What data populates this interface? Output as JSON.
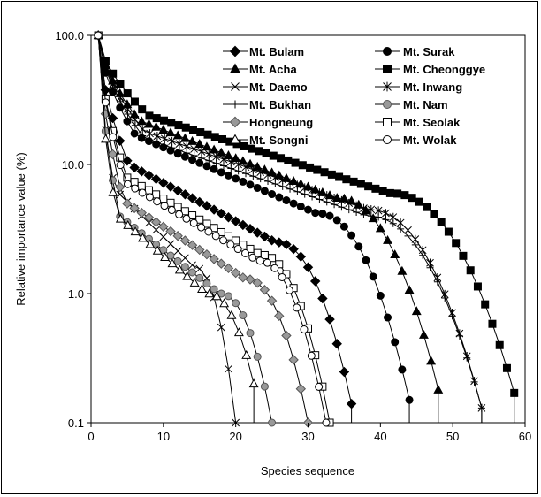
{
  "chart_data": {
    "type": "line",
    "title": "",
    "xlabel": "Species sequence",
    "ylabel": "Relative importance value (%)",
    "xlim": [
      0,
      60
    ],
    "ylim": [
      0.1,
      100
    ],
    "y_scale": "log",
    "grid": false,
    "legend_position": "top-right",
    "x_ticks": [
      0,
      10,
      20,
      30,
      40,
      50,
      60
    ],
    "x_tick_labels": [
      "0",
      "10",
      "20",
      "30",
      "40",
      "50",
      "60"
    ],
    "y_ticks": [
      0.1,
      1,
      10,
      100
    ],
    "y_tick_labels": [
      "0.1",
      "1.0",
      "10.0",
      "100.0"
    ],
    "series": [
      {
        "name": "Mt. Bulam",
        "marker": "diamond",
        "fill": "#000000",
        "n": 36,
        "end_x": 36,
        "start": 100,
        "mid": 2.5,
        "last": 0.14
      },
      {
        "name": "Mt. Surak",
        "marker": "circle",
        "fill": "#000000",
        "n": 44,
        "end_x": 44,
        "start": 100,
        "mid": 4.2,
        "last": 0.15
      },
      {
        "name": "Mt. Acha",
        "marker": "triangle",
        "fill": "#000000",
        "n": 48,
        "end_x": 48,
        "start": 100,
        "mid": 5.5,
        "last": 0.18
      },
      {
        "name": "Mt. Cheonggye",
        "marker": "square",
        "fill": "#000000",
        "n": 58,
        "end_x": 58.5,
        "start": 100,
        "mid": 6.0,
        "last": 0.17
      },
      {
        "name": "Mt. Daemo",
        "marker": "x",
        "fill": "#000000",
        "n": 20,
        "end_x": 20,
        "start": 100,
        "mid": 1.6,
        "last": 0.1
      },
      {
        "name": "Mt. Inwang",
        "marker": "asterisk",
        "fill": "#000000",
        "n": 53,
        "end_x": 54,
        "start": 100,
        "mid": 4.5,
        "last": 0.13
      },
      {
        "name": "Mt. Bukhan",
        "marker": "plus",
        "fill": "#000000",
        "n": 53,
        "end_x": 54,
        "start": 100,
        "mid": 4.0,
        "last": 0.13
      },
      {
        "name": "Mt. Nam",
        "marker": "circle",
        "fill": "#999999",
        "n": 25,
        "end_x": 25,
        "start": 100,
        "mid": 1.0,
        "last": 0.1
      },
      {
        "name": "Hongneung",
        "marker": "diamond",
        "fill": "#999999",
        "n": 30,
        "end_x": 30,
        "start": 100,
        "mid": 1.3,
        "last": 0.1
      },
      {
        "name": "Mt. Seolak",
        "marker": "square",
        "fill": "#ffffff",
        "n": 33,
        "end_x": 33,
        "start": 100,
        "mid": 2.0,
        "last": 0.1
      },
      {
        "name": "Mt. Songni",
        "marker": "triangle",
        "fill": "#ffffff",
        "n": 22,
        "end_x": 22.5,
        "start": 100,
        "mid": 1.0,
        "last": 0.2
      },
      {
        "name": "Mt. Wolak",
        "marker": "circle",
        "fill": "#ffffff",
        "n": 32,
        "end_x": 32.5,
        "start": 100,
        "mid": 1.8,
        "last": 0.1
      }
    ]
  }
}
